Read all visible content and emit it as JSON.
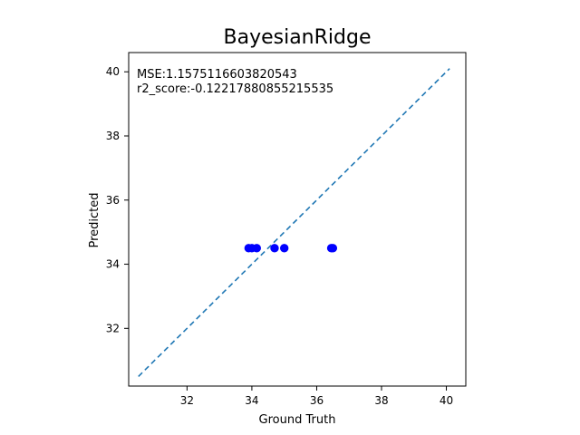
{
  "chart_data": {
    "type": "scatter",
    "title": "BayesianRidge",
    "xlabel": "Ground Truth",
    "ylabel": "Predicted",
    "xlim": [
      30.2,
      40.6
    ],
    "ylim": [
      30.2,
      40.6
    ],
    "xticks": [
      32,
      34,
      36,
      38,
      40
    ],
    "yticks": [
      32,
      34,
      36,
      38,
      40
    ],
    "grid": false,
    "annotations": [
      "MSE:1.1575116603820543",
      "r2_score:-0.12217880855215535"
    ],
    "series": [
      {
        "type": "scatter",
        "color": "#0000ff",
        "x": [
          33.9,
          34.0,
          34.15,
          34.7,
          35.0,
          36.45,
          36.5
        ],
        "y": [
          34.5,
          34.5,
          34.5,
          34.5,
          34.5,
          34.5,
          34.5
        ]
      }
    ],
    "reference_line": {
      "style": "dashed",
      "color": "#1f77b4",
      "from": [
        30.5,
        30.5
      ],
      "to": [
        40.1,
        40.1
      ]
    }
  }
}
